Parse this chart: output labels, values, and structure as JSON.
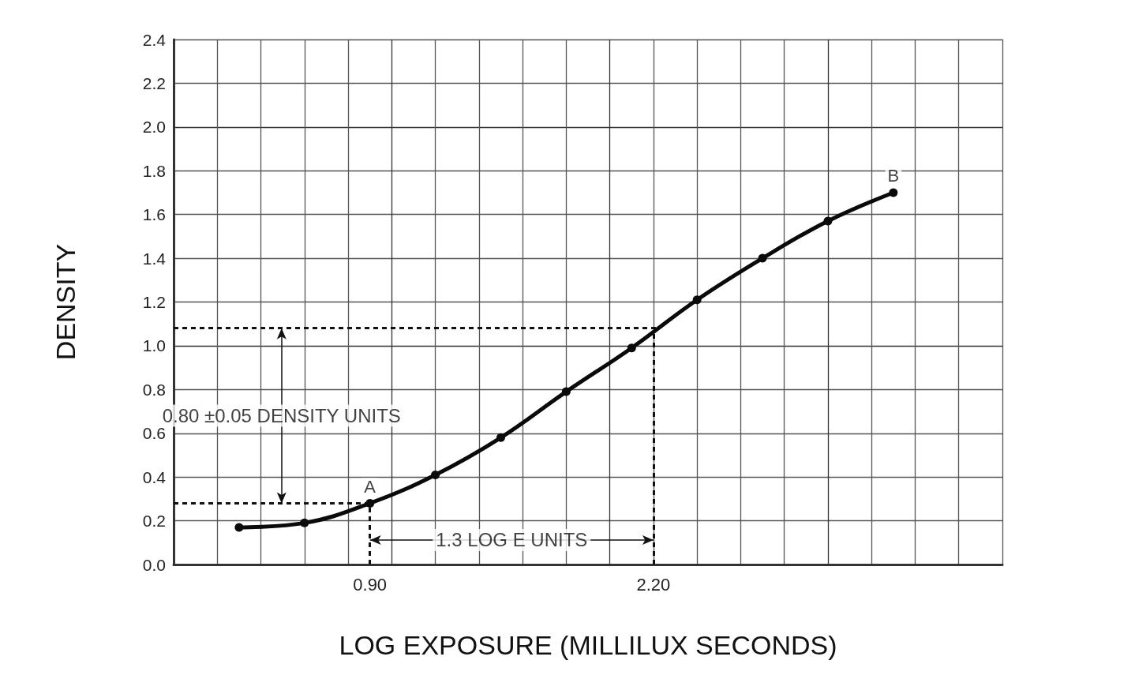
{
  "chart_data": {
    "type": "line",
    "xlabel": "LOG EXPOSURE (MILLILUX SECONDS)",
    "ylabel": "DENSITY",
    "x": [
      0.3,
      0.6,
      0.9,
      1.2,
      1.5,
      1.8,
      2.1,
      2.4,
      2.7,
      3.0,
      3.3
    ],
    "series": [
      {
        "color": "#0a0a0a",
        "values": [
          0.17,
          0.19,
          0.28,
          0.41,
          0.58,
          0.79,
          0.99,
          1.21,
          1.4,
          1.57,
          1.7
        ]
      }
    ],
    "marker": "circle",
    "line_style": "solid",
    "grid": true,
    "xlim": [
      0,
      3.8
    ],
    "xticks": [
      {
        "value": 0.9,
        "label": "0.90"
      },
      {
        "value": 2.2,
        "label": "2.20"
      }
    ],
    "ylim": [
      0,
      2.4
    ],
    "yticks": [
      {
        "value": 0,
        "label": "0.0"
      },
      {
        "value": 0.2,
        "label": "0.2"
      },
      {
        "value": 0.4,
        "label": "0.4"
      },
      {
        "value": 0.6,
        "label": "0.6"
      },
      {
        "value": 0.8,
        "label": "0.8"
      },
      {
        "value": 1,
        "label": "1.0"
      },
      {
        "value": 1.2,
        "label": "1.2"
      },
      {
        "value": 1.4,
        "label": "1.4"
      },
      {
        "value": 1.6,
        "label": "1.6"
      },
      {
        "value": 1.8,
        "label": "1.8"
      },
      {
        "value": 2,
        "label": "2.0"
      },
      {
        "value": 2.2,
        "label": "2.2"
      },
      {
        "value": 2.4,
        "label": "2.4"
      }
    ],
    "ref_lines": [
      {
        "axis": "y",
        "value": 0.28,
        "line_style": "dashed"
      },
      {
        "axis": "y",
        "value": 1.08,
        "line_style": "dashed"
      },
      {
        "axis": "x",
        "value": 0.9,
        "line_style": "dashed"
      },
      {
        "axis": "x",
        "value": 2.2,
        "line_style": "dashed"
      }
    ],
    "annotations": [
      "0.80 ±0.05 DENSITY UNITS",
      "1.3 LOG E UNITS",
      {
        "text": "A",
        "x": 0.9,
        "y": 0.28
      },
      {
        "text": "B",
        "x": 3.3,
        "y": 1.7
      }
    ]
  }
}
